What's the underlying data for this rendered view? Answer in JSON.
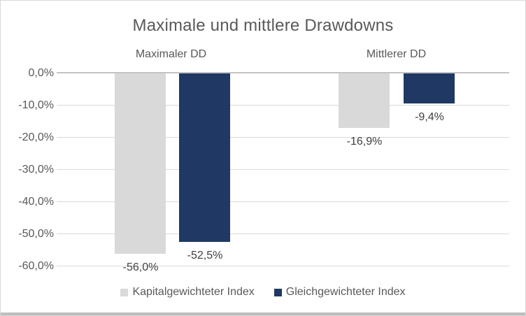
{
  "chart_data": {
    "type": "bar",
    "title": "Maximale und mittlere Drawdowns",
    "categories": [
      "Maximaler DD",
      "Mittlerer DD"
    ],
    "series": [
      {
        "name": "Kapitalgewichteter Index",
        "color": "#d9d9d9",
        "values": [
          -56.0,
          -16.9
        ],
        "value_labels": [
          "-56,0%",
          "-16,9%"
        ]
      },
      {
        "name": "Gleichgewichteter Index",
        "color": "#203864",
        "values": [
          -52.5,
          -9.4
        ],
        "value_labels": [
          "-52,5%",
          "-9,4%"
        ]
      }
    ],
    "ylim": [
      -60,
      0
    ],
    "yticks": [
      0,
      -10,
      -20,
      -30,
      -40,
      -50,
      -60
    ],
    "ytick_labels": [
      "0,0%",
      "-10,0%",
      "-20,0%",
      "-30,0%",
      "-40,0%",
      "-50,0%",
      "-60,0%"
    ],
    "grid": true,
    "legend_position": "bottom",
    "colors": {
      "grid": "#d9d9d9",
      "zero_line": "#c3c3c3",
      "title_text": "#595959",
      "axis_text": "#595959",
      "data_label_text": "#3f3f3f",
      "frame_border": "#d9d9d9",
      "bottom_edge": "#bdbdbd"
    }
  }
}
